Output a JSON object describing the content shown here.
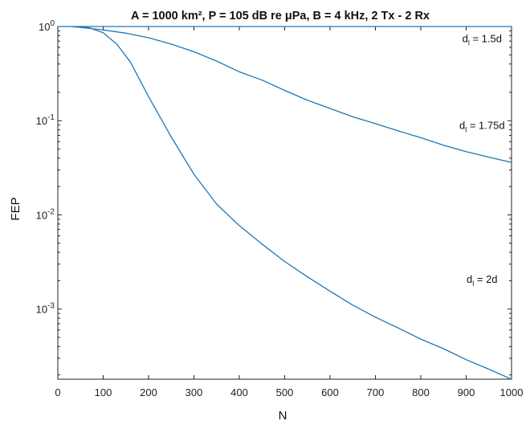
{
  "chart_data": {
    "type": "line",
    "title": "A = 1000 km², P = 105 dB re μPa, B = 4 kHz, 2 Tx - 2 Rx",
    "xlabel": "N",
    "ylabel": "FEP",
    "xlim": [
      0,
      1000
    ],
    "ylim": [
      0.00018,
      1
    ],
    "yscale": "log",
    "grid": false,
    "x_ticks": [
      0,
      100,
      200,
      300,
      400,
      500,
      600,
      700,
      800,
      900,
      1000
    ],
    "y_ticks": [
      {
        "value": 1,
        "base": "10",
        "exp": "0"
      },
      {
        "value": 0.1,
        "base": "10",
        "exp": "-1"
      },
      {
        "value": 0.01,
        "base": "10",
        "exp": "-2"
      },
      {
        "value": 0.001,
        "base": "10",
        "exp": "-3"
      }
    ],
    "series_color": "#1f77b4",
    "series": [
      {
        "name": "",
        "x": [
          0,
          50,
          100,
          150,
          200,
          250,
          300,
          350,
          400,
          450,
          500,
          550,
          600,
          650,
          700,
          750,
          800,
          850,
          900,
          950,
          1000
        ],
        "y": [
          1,
          1,
          1,
          1,
          1,
          1,
          1,
          1,
          1,
          1,
          1,
          1,
          1,
          1,
          1,
          1,
          1,
          1,
          1,
          1,
          1
        ]
      },
      {
        "name": "",
        "x": [
          30,
          100,
          150,
          200,
          250,
          300,
          350,
          400,
          450,
          500,
          550,
          600,
          650,
          700,
          750,
          800,
          850,
          900,
          950,
          1000
        ],
        "y": [
          1.0,
          0.92,
          0.85,
          0.76,
          0.65,
          0.54,
          0.43,
          0.33,
          0.27,
          0.21,
          0.165,
          0.135,
          0.11,
          0.093,
          0.078,
          0.066,
          0.055,
          0.047,
          0.041,
          0.036
        ]
      },
      {
        "name": "",
        "x": [
          40,
          70,
          100,
          130,
          160,
          200,
          250,
          300,
          350,
          400,
          450,
          500,
          550,
          600,
          650,
          700,
          750,
          800,
          850,
          900,
          950,
          1000
        ],
        "y": [
          1.0,
          0.97,
          0.86,
          0.65,
          0.42,
          0.18,
          0.067,
          0.027,
          0.013,
          0.0077,
          0.0049,
          0.0032,
          0.0022,
          0.00155,
          0.0011,
          0.00082,
          0.00063,
          0.00048,
          0.00038,
          0.00029,
          0.00023,
          0.00018
        ]
      }
    ],
    "annotations": [
      {
        "main": "d",
        "sub": "l",
        "rest": " = 1.5d",
        "x": 935,
        "y": 0.68
      },
      {
        "main": "d",
        "sub": "l",
        "rest": " = 1.75d",
        "x": 935,
        "y": 0.082
      },
      {
        "main": "d",
        "sub": "l",
        "rest": " = 2d",
        "x": 935,
        "y": 0.0019
      }
    ]
  }
}
